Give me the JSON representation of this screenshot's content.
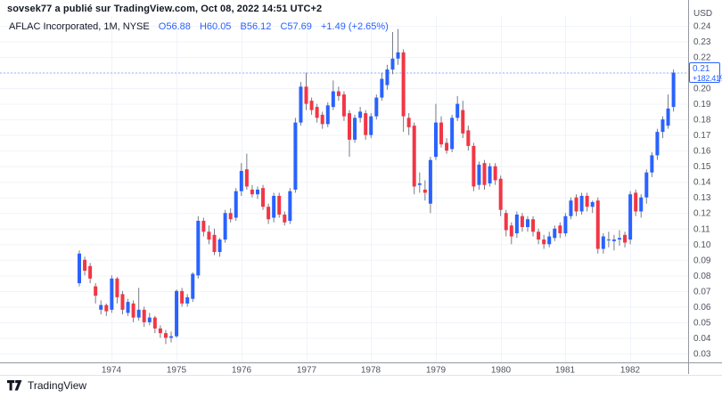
{
  "header": {
    "published_line": "sovsek77 a publié sur TradingView.com, Oct 08, 2022 14:51 UTC+2",
    "symbol_title": "AFLAC Incorporated, 1M, NYSE",
    "ohlc": {
      "open": "O56.88",
      "high": "H60.05",
      "low": "B56.12",
      "close": "C57.69",
      "change": "+1.49 (+2.65%)"
    }
  },
  "price_label": {
    "price": "0.21",
    "change_percent": "+182.41%"
  },
  "y_axis": {
    "currency_label": "USD",
    "ticks": [
      0.24,
      0.23,
      0.22,
      0.21,
      0.2,
      0.19,
      0.18,
      0.17,
      0.16,
      0.15,
      0.14,
      0.13,
      0.12,
      0.11,
      0.1,
      0.09,
      0.08,
      0.07,
      0.06,
      0.05,
      0.04,
      0.03
    ]
  },
  "x_axis": {
    "years": [
      "1974",
      "1975",
      "1976",
      "1977",
      "1978",
      "1979",
      "1980",
      "1981",
      "1982"
    ]
  },
  "footer": {
    "brand": "TradingView"
  },
  "colors": {
    "up": "#2962FF",
    "down": "#F23645",
    "wick": "#787B86",
    "grid": "#F0F3FA",
    "axis_line": "#9598A1",
    "axis_text": "#50535E",
    "accent": "#2962FF",
    "text": "#131722"
  },
  "chart_data": {
    "type": "candlestick",
    "title": "AFLAC Incorporated",
    "interval": "1M",
    "exchange": "NYSE",
    "unit": "USD",
    "ylim": [
      0.024,
      0.247
    ],
    "y_tick_step": 0.01,
    "grid": true,
    "first_month": "1973-07",
    "last": {
      "price": 0.21,
      "change_percent": "+182.41%"
    },
    "columns": [
      "month",
      "open",
      "high",
      "low",
      "close"
    ],
    "candles": [
      [
        "1973-07",
        0.075,
        0.096,
        0.073,
        0.094
      ],
      [
        "1973-08",
        0.09,
        0.092,
        0.08,
        0.083
      ],
      [
        "1973-09",
        0.086,
        0.088,
        0.075,
        0.078
      ],
      [
        "1973-10",
        0.073,
        0.075,
        0.062,
        0.067
      ],
      [
        "1973-11",
        0.058,
        0.064,
        0.055,
        0.061
      ],
      [
        "1973-12",
        0.061,
        0.062,
        0.054,
        0.057
      ],
      [
        "1974-01",
        0.058,
        0.08,
        0.056,
        0.078
      ],
      [
        "1974-02",
        0.078,
        0.079,
        0.062,
        0.066
      ],
      [
        "1974-03",
        0.068,
        0.07,
        0.055,
        0.058
      ],
      [
        "1974-04",
        0.056,
        0.065,
        0.054,
        0.063
      ],
      [
        "1974-05",
        0.062,
        0.064,
        0.05,
        0.053
      ],
      [
        "1974-06",
        0.053,
        0.072,
        0.051,
        0.058
      ],
      [
        "1974-07",
        0.058,
        0.06,
        0.047,
        0.05
      ],
      [
        "1974-08",
        0.05,
        0.056,
        0.048,
        0.053
      ],
      [
        "1974-09",
        0.053,
        0.054,
        0.043,
        0.046
      ],
      [
        "1974-10",
        0.046,
        0.048,
        0.04,
        0.043
      ],
      [
        "1974-11",
        0.043,
        0.045,
        0.036,
        0.04
      ],
      [
        "1974-12",
        0.04,
        0.044,
        0.037,
        0.041
      ],
      [
        "1975-01",
        0.041,
        0.071,
        0.04,
        0.07
      ],
      [
        "1975-02",
        0.07,
        0.072,
        0.06,
        0.062
      ],
      [
        "1975-03",
        0.062,
        0.068,
        0.06,
        0.066
      ],
      [
        "1975-04",
        0.065,
        0.082,
        0.063,
        0.081
      ],
      [
        "1975-05",
        0.08,
        0.118,
        0.078,
        0.115
      ],
      [
        "1975-06",
        0.115,
        0.117,
        0.105,
        0.108
      ],
      [
        "1975-07",
        0.108,
        0.112,
        0.1,
        0.103
      ],
      [
        "1975-08",
        0.106,
        0.11,
        0.093,
        0.095
      ],
      [
        "1975-09",
        0.095,
        0.104,
        0.092,
        0.103
      ],
      [
        "1975-10",
        0.103,
        0.122,
        0.101,
        0.12
      ],
      [
        "1975-11",
        0.12,
        0.123,
        0.114,
        0.116
      ],
      [
        "1975-12",
        0.117,
        0.136,
        0.115,
        0.134
      ],
      [
        "1976-01",
        0.134,
        0.152,
        0.131,
        0.147
      ],
      [
        "1976-02",
        0.148,
        0.158,
        0.135,
        0.137
      ],
      [
        "1976-03",
        0.135,
        0.138,
        0.13,
        0.132
      ],
      [
        "1976-04",
        0.132,
        0.137,
        0.129,
        0.135
      ],
      [
        "1976-05",
        0.136,
        0.138,
        0.122,
        0.124
      ],
      [
        "1976-06",
        0.124,
        0.126,
        0.113,
        0.116
      ],
      [
        "1976-07",
        0.117,
        0.133,
        0.114,
        0.131
      ],
      [
        "1976-08",
        0.131,
        0.133,
        0.117,
        0.119
      ],
      [
        "1976-09",
        0.119,
        0.121,
        0.112,
        0.114
      ],
      [
        "1976-10",
        0.115,
        0.136,
        0.113,
        0.134
      ],
      [
        "1976-11",
        0.135,
        0.181,
        0.133,
        0.178
      ],
      [
        "1976-12",
        0.178,
        0.204,
        0.176,
        0.201
      ],
      [
        "1977-01",
        0.201,
        0.21,
        0.186,
        0.19
      ],
      [
        "1977-02",
        0.192,
        0.194,
        0.183,
        0.186
      ],
      [
        "1977-03",
        0.188,
        0.19,
        0.178,
        0.181
      ],
      [
        "1977-04",
        0.183,
        0.185,
        0.174,
        0.177
      ],
      [
        "1977-05",
        0.177,
        0.191,
        0.175,
        0.189
      ],
      [
        "1977-06",
        0.188,
        0.205,
        0.186,
        0.198
      ],
      [
        "1977-07",
        0.198,
        0.201,
        0.192,
        0.195
      ],
      [
        "1977-08",
        0.196,
        0.198,
        0.179,
        0.182
      ],
      [
        "1977-09",
        0.184,
        0.186,
        0.156,
        0.167
      ],
      [
        "1977-10",
        0.167,
        0.183,
        0.165,
        0.181
      ],
      [
        "1977-11",
        0.181,
        0.188,
        0.178,
        0.185
      ],
      [
        "1977-12",
        0.184,
        0.186,
        0.167,
        0.17
      ],
      [
        "1978-01",
        0.17,
        0.184,
        0.168,
        0.182
      ],
      [
        "1978-02",
        0.182,
        0.196,
        0.18,
        0.194
      ],
      [
        "1978-03",
        0.194,
        0.21,
        0.192,
        0.206
      ],
      [
        "1978-04",
        0.202,
        0.215,
        0.199,
        0.212
      ],
      [
        "1978-05",
        0.212,
        0.236,
        0.209,
        0.219
      ],
      [
        "1978-06",
        0.219,
        0.238,
        0.215,
        0.223
      ],
      [
        "1978-07",
        0.223,
        0.225,
        0.172,
        0.182
      ],
      [
        "1978-08",
        0.181,
        0.184,
        0.17,
        0.175
      ],
      [
        "1978-09",
        0.176,
        0.178,
        0.132,
        0.137
      ],
      [
        "1978-10",
        0.138,
        0.146,
        0.133,
        0.139
      ],
      [
        "1978-11",
        0.135,
        0.141,
        0.128,
        0.133
      ],
      [
        "1978-12",
        0.126,
        0.156,
        0.12,
        0.154
      ],
      [
        "1979-01",
        0.156,
        0.19,
        0.154,
        0.178
      ],
      [
        "1979-02",
        0.178,
        0.182,
        0.162,
        0.164
      ],
      [
        "1979-03",
        0.165,
        0.168,
        0.158,
        0.16
      ],
      [
        "1979-04",
        0.161,
        0.183,
        0.159,
        0.181
      ],
      [
        "1979-05",
        0.181,
        0.195,
        0.179,
        0.19
      ],
      [
        "1979-06",
        0.186,
        0.192,
        0.168,
        0.171
      ],
      [
        "1979-07",
        0.173,
        0.176,
        0.16,
        0.163
      ],
      [
        "1979-08",
        0.163,
        0.165,
        0.134,
        0.137
      ],
      [
        "1979-09",
        0.138,
        0.153,
        0.135,
        0.151
      ],
      [
        "1979-10",
        0.152,
        0.154,
        0.135,
        0.138
      ],
      [
        "1979-11",
        0.139,
        0.152,
        0.137,
        0.15
      ],
      [
        "1979-12",
        0.15,
        0.152,
        0.138,
        0.141
      ],
      [
        "1980-01",
        0.142,
        0.144,
        0.118,
        0.122
      ],
      [
        "1980-02",
        0.12,
        0.122,
        0.105,
        0.109
      ],
      [
        "1980-03",
        0.112,
        0.114,
        0.1,
        0.105
      ],
      [
        "1980-04",
        0.107,
        0.121,
        0.104,
        0.119
      ],
      [
        "1980-05",
        0.118,
        0.12,
        0.108,
        0.111
      ],
      [
        "1980-06",
        0.111,
        0.118,
        0.108,
        0.116
      ],
      [
        "1980-07",
        0.116,
        0.118,
        0.105,
        0.108
      ],
      [
        "1980-08",
        0.108,
        0.11,
        0.1,
        0.103
      ],
      [
        "1980-09",
        0.103,
        0.106,
        0.097,
        0.1
      ],
      [
        "1980-10",
        0.1,
        0.108,
        0.098,
        0.105
      ],
      [
        "1980-11",
        0.104,
        0.112,
        0.102,
        0.11
      ],
      [
        "1980-12",
        0.112,
        0.114,
        0.104,
        0.107
      ],
      [
        "1981-01",
        0.107,
        0.12,
        0.105,
        0.118
      ],
      [
        "1981-02",
        0.118,
        0.13,
        0.116,
        0.128
      ],
      [
        "1981-03",
        0.13,
        0.132,
        0.118,
        0.121
      ],
      [
        "1981-04",
        0.121,
        0.133,
        0.119,
        0.131
      ],
      [
        "1981-05",
        0.131,
        0.133,
        0.121,
        0.124
      ],
      [
        "1981-06",
        0.124,
        0.128,
        0.12,
        0.127
      ],
      [
        "1981-07",
        0.128,
        0.13,
        0.094,
        0.097
      ],
      [
        "1981-08",
        0.097,
        0.107,
        0.094,
        0.105
      ],
      [
        "1981-09",
        0.103,
        0.108,
        0.098,
        0.103
      ],
      [
        "1981-10",
        0.102,
        0.106,
        0.096,
        0.103
      ],
      [
        "1981-11",
        0.103,
        0.109,
        0.099,
        0.104
      ],
      [
        "1981-12",
        0.106,
        0.108,
        0.098,
        0.101
      ],
      [
        "1982-01",
        0.103,
        0.134,
        0.1,
        0.132
      ],
      [
        "1982-02",
        0.133,
        0.135,
        0.118,
        0.121
      ],
      [
        "1982-03",
        0.121,
        0.132,
        0.117,
        0.13
      ],
      [
        "1982-04",
        0.13,
        0.148,
        0.126,
        0.146
      ],
      [
        "1982-05",
        0.146,
        0.159,
        0.143,
        0.157
      ],
      [
        "1982-06",
        0.157,
        0.174,
        0.154,
        0.172
      ],
      [
        "1982-07",
        0.172,
        0.182,
        0.168,
        0.18
      ],
      [
        "1982-08",
        0.176,
        0.196,
        0.174,
        0.187
      ],
      [
        "1982-09",
        0.188,
        0.212,
        0.185,
        0.21
      ]
    ]
  }
}
